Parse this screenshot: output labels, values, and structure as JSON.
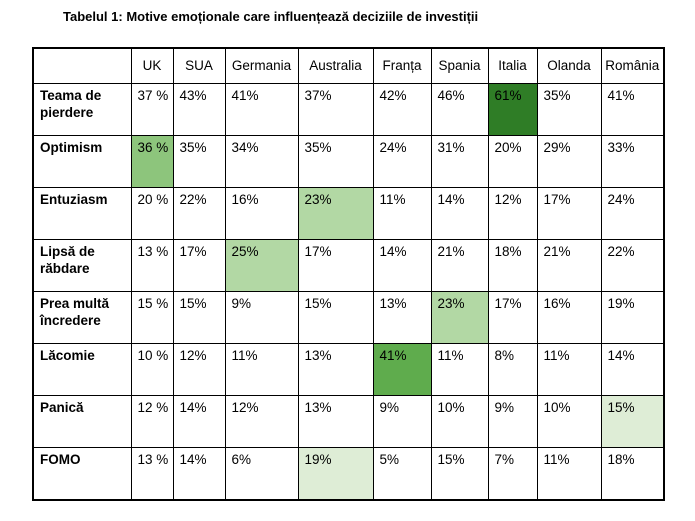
{
  "title": "Tabelul 1: Motive emoționale care influențează deciziile de investiții",
  "table": {
    "columns": [
      "",
      "UK",
      "SUA",
      "Germania",
      "Australia",
      "Franța",
      "Spania",
      "Italia",
      "Olanda",
      "România"
    ],
    "rows": [
      {
        "label": "Teama de pierdere",
        "values": [
          "37 %",
          "43%",
          "41%",
          "37%",
          "42%",
          "46%",
          "61%",
          "35%",
          "41%"
        ],
        "highlights": {
          "6": "dark"
        }
      },
      {
        "label": "Optimism",
        "values": [
          "36 %",
          "35%",
          "34%",
          "35%",
          "24%",
          "31%",
          "20%",
          "29%",
          "33%"
        ],
        "highlights": {
          "0": "medium_light"
        }
      },
      {
        "label": "Entuziasm",
        "values": [
          "20 %",
          "22%",
          "16%",
          "23%",
          "11%",
          "14%",
          "12%",
          "17%",
          "24%"
        ],
        "highlights": {
          "3": "light"
        }
      },
      {
        "label": "Lipsă de răbdare",
        "values": [
          "13 %",
          "17%",
          "25%",
          "17%",
          "14%",
          "21%",
          "18%",
          "21%",
          "22%"
        ],
        "highlights": {
          "2": "light"
        }
      },
      {
        "label": "Prea multă încredere",
        "values": [
          "15 %",
          "15%",
          "9%",
          "15%",
          "13%",
          "23%",
          "17%",
          "16%",
          "19%"
        ],
        "highlights": {
          "5": "light"
        }
      },
      {
        "label": "Lăcomie",
        "values": [
          "10 %",
          "12%",
          "11%",
          "13%",
          "41%",
          "11%",
          "8%",
          "11%",
          "14%"
        ],
        "highlights": {
          "4": "medium"
        }
      },
      {
        "label": "Panică",
        "values": [
          "12 %",
          "14%",
          "12%",
          "13%",
          "9%",
          "10%",
          "9%",
          "10%",
          "15%"
        ],
        "highlights": {
          "8": "pale"
        }
      },
      {
        "label": "FOMO",
        "values": [
          "13 %",
          "14%",
          "6%",
          "19%",
          "5%",
          "15%",
          "7%",
          "11%",
          "18%"
        ],
        "highlights": {
          "3": "pale"
        }
      }
    ]
  },
  "colors": {
    "dark": "#2F7D26",
    "medium": "#5FAC4D",
    "medium_light": "#8DC57C",
    "light": "#B2D8A4",
    "pale": "#DEEDD6",
    "border": "#000000",
    "text": "#000000",
    "background": "#FFFFFF"
  }
}
